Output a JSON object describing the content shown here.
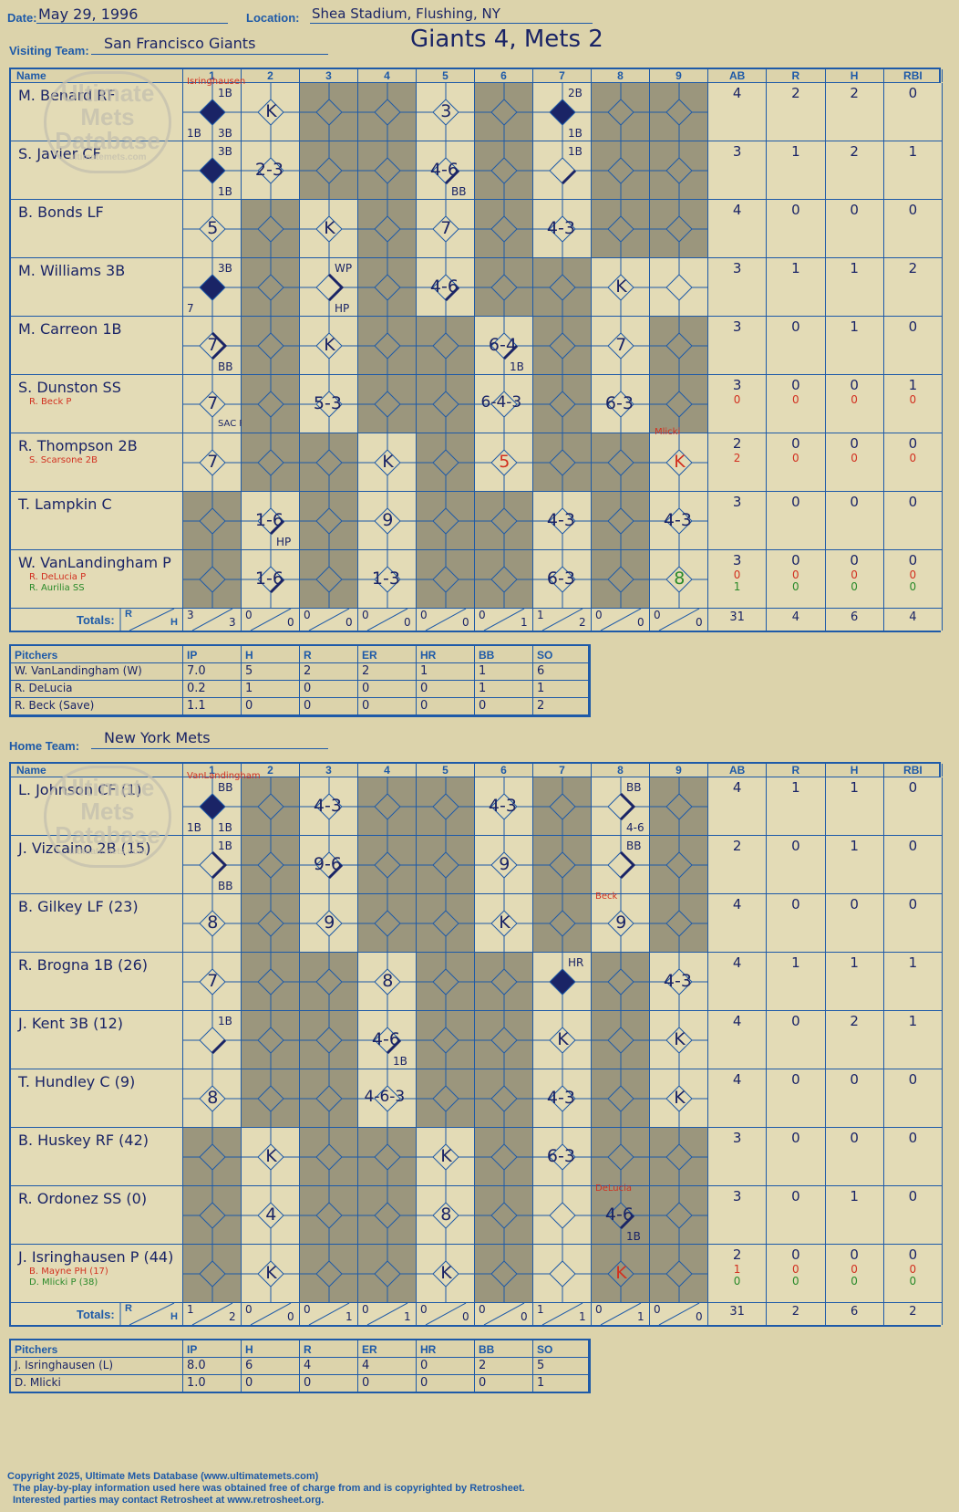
{
  "header": {
    "date_label": "Date:",
    "date": "May 29, 1996",
    "location_label": "Location:",
    "location": "Shea Stadium, Flushing, NY",
    "visiting_label": "Visiting Team:",
    "visiting": "San Francisco Giants",
    "result": "Giants 4, Mets 2",
    "home_label": "Home Team:",
    "home": "New York Mets"
  },
  "columns": {
    "name": "Name",
    "innings": [
      "1",
      "2",
      "3",
      "4",
      "5",
      "6",
      "7",
      "8",
      "9"
    ],
    "stats": [
      "AB",
      "R",
      "H",
      "RBI"
    ]
  },
  "watermark": {
    "line1": "Ultimate",
    "line2": "Mets",
    "line3": "Database",
    "url": "ultimatemets.com"
  },
  "visitors": {
    "players": [
      {
        "name": "M. Benard RF",
        "stats": [
          "4",
          "2",
          "2",
          "0"
        ]
      },
      {
        "name": "S. Javier CF",
        "stats": [
          "3",
          "1",
          "2",
          "1"
        ]
      },
      {
        "name": "B. Bonds LF",
        "stats": [
          "4",
          "0",
          "0",
          "0"
        ]
      },
      {
        "name": "M. Williams 3B",
        "stats": [
          "3",
          "1",
          "1",
          "2"
        ]
      },
      {
        "name": "M. Carreon 1B",
        "stats": [
          "3",
          "0",
          "1",
          "0"
        ]
      },
      {
        "name": "S. Dunston SS",
        "sub": "R. Beck P",
        "stats": [
          "3",
          "0",
          "0",
          "1"
        ],
        "substats": [
          "0",
          "0",
          "0",
          "0"
        ]
      },
      {
        "name": "R. Thompson 2B",
        "sub": "S. Scarsone 2B",
        "stats": [
          "2",
          "0",
          "0",
          "0"
        ],
        "substats": [
          "2",
          "0",
          "0",
          "0"
        ]
      },
      {
        "name": "T. Lampkin C",
        "stats": [
          "3",
          "0",
          "0",
          "0"
        ]
      },
      {
        "name": "W. VanLandingham P",
        "sub": "R. DeLucia P",
        "sub2": "R. Aurilia SS",
        "stats": [
          "3",
          "0",
          "0",
          "0"
        ],
        "substats": [
          "0",
          "0",
          "0",
          "0"
        ],
        "substats2": [
          "1",
          "0",
          "0",
          "0"
        ]
      }
    ],
    "totals_label": "Totals:",
    "rh": {
      "r": "R",
      "h": "H"
    },
    "inning_totals": [
      [
        "3",
        "3"
      ],
      [
        "0",
        "0"
      ],
      [
        "0",
        "0"
      ],
      [
        "0",
        "0"
      ],
      [
        "0",
        "0"
      ],
      [
        "0",
        "1"
      ],
      [
        "1",
        "2"
      ],
      [
        "0",
        "0"
      ],
      [
        "0",
        "0"
      ]
    ],
    "totals": [
      "31",
      "4",
      "6",
      "4"
    ],
    "annotations": {
      "isringhausen": "Isringhausen",
      "mlicki": "Mlicki"
    }
  },
  "visitor_pitchers": {
    "headers": [
      "Pitchers",
      "IP",
      "H",
      "R",
      "ER",
      "HR",
      "BB",
      "SO"
    ],
    "rows": [
      [
        "W. VanLandingham (W)",
        "7.0",
        "5",
        "2",
        "2",
        "1",
        "1",
        "6"
      ],
      [
        "R. DeLucia",
        "0.2",
        "1",
        "0",
        "0",
        "0",
        "1",
        "1"
      ],
      [
        "R. Beck (Save)",
        "1.1",
        "0",
        "0",
        "0",
        "0",
        "0",
        "2"
      ]
    ]
  },
  "home_team": {
    "players": [
      {
        "name": "L. Johnson CF (1)",
        "stats": [
          "4",
          "1",
          "1",
          "0"
        ]
      },
      {
        "name": "J. Vizcaino 2B (15)",
        "stats": [
          "2",
          "0",
          "1",
          "0"
        ]
      },
      {
        "name": "B. Gilkey LF (23)",
        "stats": [
          "4",
          "0",
          "0",
          "0"
        ]
      },
      {
        "name": "R. Brogna 1B (26)",
        "stats": [
          "4",
          "1",
          "1",
          "1"
        ]
      },
      {
        "name": "J. Kent 3B (12)",
        "stats": [
          "4",
          "0",
          "2",
          "1"
        ]
      },
      {
        "name": "T. Hundley C (9)",
        "stats": [
          "4",
          "0",
          "0",
          "0"
        ]
      },
      {
        "name": "B. Huskey RF (42)",
        "stats": [
          "3",
          "0",
          "0",
          "0"
        ]
      },
      {
        "name": "R. Ordonez SS (0)",
        "stats": [
          "3",
          "0",
          "1",
          "0"
        ]
      },
      {
        "name": "J. Isringhausen P (44)",
        "sub": "B. Mayne PH (17)",
        "sub2": "D. Mlicki P (38)",
        "stats": [
          "2",
          "0",
          "0",
          "0"
        ],
        "substats": [
          "1",
          "0",
          "0",
          "0"
        ],
        "substats2": [
          "0",
          "0",
          "0",
          "0"
        ]
      }
    ],
    "totals_label": "Totals:",
    "rh": {
      "r": "R",
      "h": "H"
    },
    "inning_totals": [
      [
        "1",
        "2"
      ],
      [
        "0",
        "0"
      ],
      [
        "0",
        "1"
      ],
      [
        "0",
        "1"
      ],
      [
        "0",
        "0"
      ],
      [
        "0",
        "0"
      ],
      [
        "1",
        "1"
      ],
      [
        "0",
        "1"
      ],
      [
        "0",
        "0"
      ]
    ],
    "totals": [
      "31",
      "2",
      "6",
      "2"
    ],
    "annotations": {
      "vanlandingham": "VanLandingham",
      "beck": "Beck",
      "delucia": "DeLucia"
    }
  },
  "home_pitchers": {
    "headers": [
      "Pitchers",
      "IP",
      "H",
      "R",
      "ER",
      "HR",
      "BB",
      "SO"
    ],
    "rows": [
      [
        "J. Isringhausen (L)",
        "8.0",
        "6",
        "4",
        "4",
        "0",
        "2",
        "5"
      ],
      [
        "D. Mlicki",
        "1.0",
        "0",
        "0",
        "0",
        "0",
        "0",
        "1"
      ]
    ]
  },
  "plays": {
    "t_1_1": "1B",
    "t_1_1b": "3B",
    "t_1_1c": "1B",
    "t_1_2": "K",
    "t_1_5": "3",
    "t_1_7": "2B",
    "t_1_7b": "1B",
    "t_2_1": "3B",
    "t_2_1b": "1B",
    "t_2_2": "2-3",
    "t_2_5": "4-6",
    "t_2_5b": "BB",
    "t_2_7": "1B",
    "t_3_1": "5",
    "t_3_3": "K",
    "t_3_5": "7",
    "t_3_7": "4-3",
    "t_4_1": "3B",
    "t_4_1b": "7",
    "t_4_3": "WP",
    "t_4_3b": "HP",
    "t_4_5": "4-6",
    "t_4_8": "K",
    "t_5_1": "7",
    "t_5_1b": "BB",
    "t_5_3": "K",
    "t_5_6": "6-4",
    "t_5_6b": "1B",
    "t_5_8": "7",
    "t_6_1": "7",
    "t_6_1b": "SAC FLY",
    "t_6_3": "5-3",
    "t_6_6": "6-4-3",
    "t_6_8": "6-3",
    "t_7_1": "7",
    "t_7_4": "K",
    "t_7_6": "5",
    "t_7_9": "K",
    "t_8_2": "1-6",
    "t_8_2b": "HP",
    "t_8_4": "9",
    "t_8_7": "4-3",
    "t_8_9": "4-3",
    "t_9_2": "1-6",
    "t_9_4": "1-3",
    "t_9_7": "6-3",
    "t_9_9": "8",
    "b_1_1": "BB",
    "b_1_1b": "1B",
    "b_1_1c": "1B",
    "b_1_3": "4-3",
    "b_1_6": "4-3",
    "b_1_8": "BB",
    "b_1_8b": "4-6",
    "b_2_1": "1B",
    "b_2_1b": "BB",
    "b_2_3": "9-6",
    "b_2_6": "9",
    "b_2_8": "BB",
    "b_3_1": "8",
    "b_3_3": "9",
    "b_3_6": "K",
    "b_3_8": "9",
    "b_4_1": "7",
    "b_4_4": "8",
    "b_4_7": "HR",
    "b_4_9": "4-3",
    "b_5_1": "1B",
    "b_5_4": "4-6",
    "b_5_4b": "1B",
    "b_5_7": "K",
    "b_5_9": "K",
    "b_6_1": "8",
    "b_6_4": "4-6-3",
    "b_6_7": "4-3",
    "b_6_9": "K",
    "b_7_2": "K",
    "b_7_5": "K",
    "b_7_7": "6-3",
    "b_8_2": "4",
    "b_8_5": "8",
    "b_8_8": "4-6",
    "b_8_8b": "1B",
    "b_9_2": "K",
    "b_9_5": "K",
    "b_9_8": "K"
  },
  "footer": {
    "line1": "Copyright 2025, Ultimate Mets Database (www.ultimatemets.com)",
    "line2": "The play-by-play information used here was obtained free of charge from and is copyrighted by Retrosheet.",
    "line3": "Interested parties may contact Retrosheet at www.retrosheet.org."
  },
  "colors": {
    "blue": "#1e5aa8",
    "ink": "#1a2466",
    "red": "#d23020",
    "green": "#2a8a2a",
    "gray": "#9b967d",
    "paper": "#dcd3ab"
  }
}
